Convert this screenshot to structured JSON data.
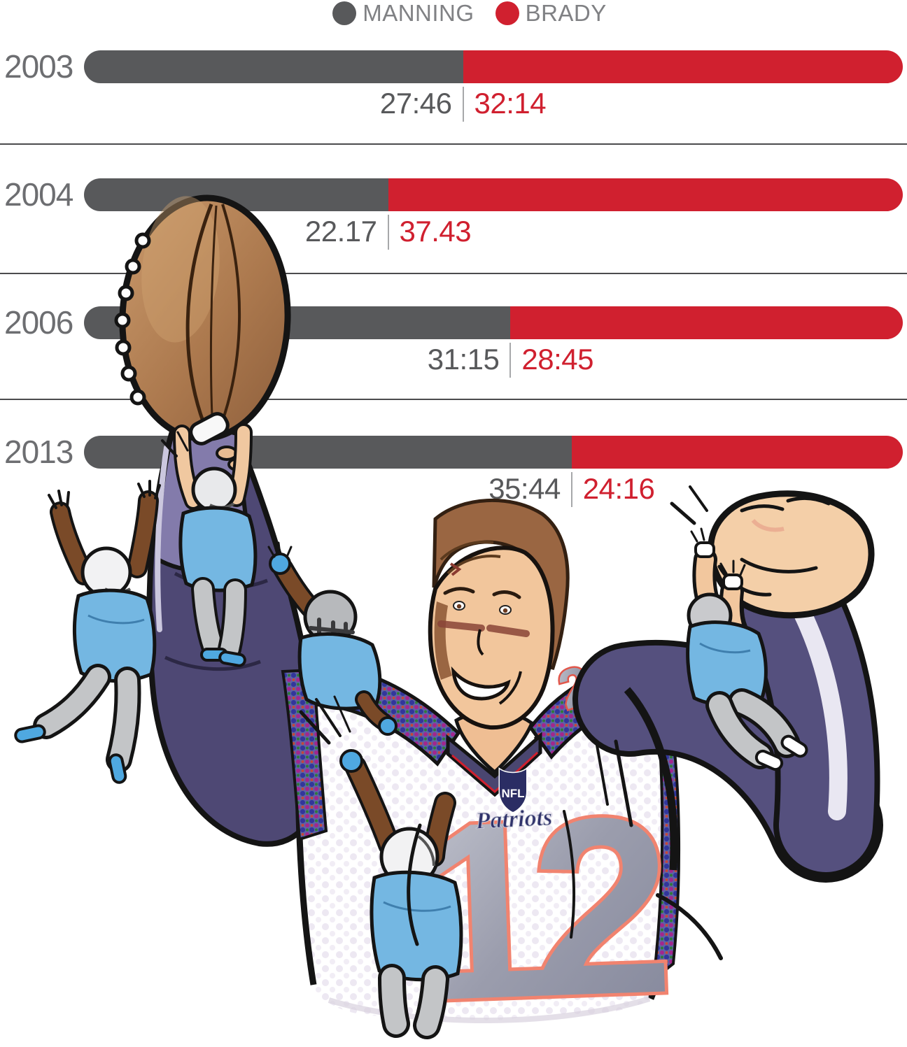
{
  "legend": {
    "items": [
      {
        "label": "MANNING",
        "color": "#58595B"
      },
      {
        "label": "BRADY",
        "color": "#D0202F"
      }
    ]
  },
  "chart_data": {
    "type": "bar",
    "orientation": "horizontal-stacked-pair",
    "categories": [
      "2003",
      "2004",
      "2006",
      "2013"
    ],
    "series": [
      {
        "name": "MANNING",
        "color": "#58595B",
        "values": [
          "27:46",
          "22.17",
          "31:15",
          "35:44"
        ],
        "seconds": [
          1666,
          1337,
          1875,
          2144
        ]
      },
      {
        "name": "BRADY",
        "color": "#D0202F",
        "values": [
          "32:14",
          "37.43",
          "28:45",
          "24:16"
        ],
        "seconds": [
          1934,
          2263,
          1725,
          1456
        ]
      }
    ],
    "total_seconds_per_row": 3600,
    "legend_position": "top-center",
    "grid": false,
    "row_separators": true
  },
  "rows": [
    {
      "year": "2003",
      "manning": "27:46",
      "brady": "32:14",
      "manning_sec": 1666,
      "brady_sec": 1934
    },
    {
      "year": "2004",
      "manning": "22.17",
      "brady": "37.43",
      "manning_sec": 1337,
      "brady_sec": 2263
    },
    {
      "year": "2006",
      "manning": "31:15",
      "brady": "28:45",
      "manning_sec": 1875,
      "brady_sec": 1725
    },
    {
      "year": "2013",
      "manning": "35:44",
      "brady": "24:16",
      "manning_sec": 2144,
      "brady_sec": 1456
    }
  ],
  "colors": {
    "manning": "#58595B",
    "brady": "#D0202F",
    "separator": "#4B4B4D",
    "value_divider": "#A7A8AA",
    "year_label": "#6D6E71",
    "legend_text": "#808184"
  },
  "illustration": {
    "jersey_number": "12",
    "shoulder_number": "2",
    "nfl_logo_text": "NFL",
    "patriots_script": "Patriots",
    "alt": "Cartoon of Tom Brady in a white Patriots number 12 jersey holding a football aloft while small light-blue players try to pull him down"
  }
}
